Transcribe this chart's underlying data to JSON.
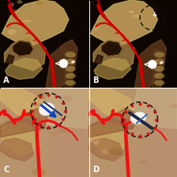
{
  "panels": [
    "A",
    "B",
    "C",
    "D"
  ],
  "bg_color": "#000000",
  "divider_color": "#ffffff",
  "label_color": "#ffffff",
  "panel_label_fontsize": 7,
  "panel_bg_top": "#1a0800",
  "panel_bg_bottom_cd": "#c8b090",
  "skull_tan": "#c8a060",
  "skull_dark": "#2a1000",
  "eye_color": "#3d1a00",
  "vessel_red": "#cc0000",
  "vessel_red2": "#ee1111",
  "neck_color": "#8a6030",
  "annotation_white": "#ffffff",
  "annotation_black": "#111111",
  "dashed_circle_color": "#111111",
  "suture_red": "#cc0000",
  "instrument_white": "#f0f0f0",
  "instrument_blue": "#1144aa",
  "instrument_dark": "#1a2a44"
}
